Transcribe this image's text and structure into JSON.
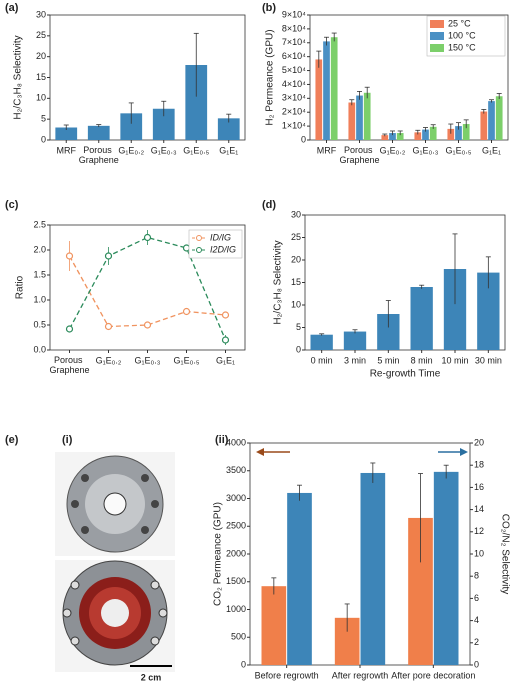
{
  "chart_data": [
    {
      "type": "bar",
      "panel": "(a)",
      "ylabel": "H₂/C₃H₈ Selectivity",
      "categories": [
        "MRF",
        "Porous Graphene",
        "G₁E₀.₂",
        "G₁E₀.₃",
        "G₁E₀.₅",
        "G₁E₁"
      ],
      "values": [
        3,
        3.4,
        6.4,
        7.5,
        18,
        5.2
      ],
      "errors": [
        0.6,
        0.3,
        2.5,
        1.8,
        7.6,
        1
      ],
      "color": "#3d85b8",
      "ylim": [
        0,
        30
      ],
      "yticks": [
        0,
        5,
        10,
        15,
        20,
        25,
        30
      ]
    },
    {
      "type": "bar",
      "panel": "(b)",
      "ylabel": "H₂ Permeance (GPU)",
      "categories": [
        "MRF",
        "Porous Graphene",
        "G₁E₀.₂",
        "G₁E₀.₃",
        "G₁E₀.₅",
        "G₁E₁"
      ],
      "series": [
        {
          "name": "25 °C",
          "color": "#f07f5a",
          "values": [
            58000,
            27000,
            3500,
            5500,
            8000,
            20500
          ],
          "errors": [
            6000,
            2000,
            800,
            1500,
            3500,
            1500
          ]
        },
        {
          "name": "100 °C",
          "color": "#4a90c4",
          "values": [
            71000,
            32000,
            5000,
            7500,
            10000,
            28000
          ],
          "errors": [
            3000,
            3000,
            1500,
            1500,
            2500,
            1000
          ]
        },
        {
          "name": "150 °C",
          "color": "#7ccf6a",
          "values": [
            74000,
            34000,
            5000,
            9500,
            11500,
            31500
          ],
          "errors": [
            3000,
            4000,
            1500,
            1500,
            3000,
            2000
          ]
        }
      ],
      "ylim": [
        0,
        90000
      ],
      "yticks": [
        0,
        {
          "value": 10000,
          "label": "1×10⁴"
        },
        {
          "value": 20000,
          "label": "2×10⁴"
        },
        {
          "value": 30000,
          "label": "3×10⁴"
        },
        {
          "value": 40000,
          "label": "4×10⁴"
        },
        {
          "value": 50000,
          "label": "5×10⁴"
        },
        {
          "value": 60000,
          "label": "6×10⁴"
        },
        {
          "value": 70000,
          "label": "7×10⁴"
        },
        {
          "value": 80000,
          "label": "8×10⁴"
        },
        {
          "value": 90000,
          "label": "9×10⁴"
        }
      ]
    },
    {
      "type": "line",
      "panel": "(c)",
      "ylabel": "Ratio",
      "categories": [
        "Porous Graphene",
        "G₁E₀.₂",
        "G₁E₀.₃",
        "G₁E₀.₅",
        "G₁E₁"
      ],
      "series": [
        {
          "name": "ID/IG",
          "color": "#f0935f",
          "values": [
            1.88,
            0.47,
            0.5,
            0.77,
            0.7
          ],
          "errors": [
            0.3,
            0.03,
            0.03,
            0.04,
            0.03
          ]
        },
        {
          "name": "I2D/IG",
          "color": "#2a8a5a",
          "values": [
            0.42,
            1.88,
            2.25,
            2.04,
            0.2
          ],
          "errors": [
            0.05,
            0.18,
            0.15,
            0.05,
            0.1
          ]
        }
      ],
      "ylim": [
        0,
        2.5
      ],
      "yticks": [
        {
          "value": 0,
          "label": "0.0"
        },
        0.5,
        {
          "value": 1,
          "label": "1.0"
        },
        1.5,
        {
          "value": 2,
          "label": "2.0"
        },
        2.5
      ]
    },
    {
      "type": "bar",
      "panel": "(d)",
      "ylabel": "H₂/C₃H₈ Selectivity",
      "xlabel": "Re-growth Time",
      "categories": [
        "0 min",
        "3 min",
        "5 min",
        "8 min",
        "10 min",
        "30 min"
      ],
      "values": [
        3.4,
        4.1,
        8,
        14,
        18,
        17.2
      ],
      "errors": [
        0.2,
        0.4,
        3,
        0.4,
        7.8,
        3.5
      ],
      "color": "#3d85b8",
      "ylim": [
        0,
        30
      ],
      "yticks": [
        0,
        5,
        10,
        15,
        20,
        25,
        30
      ]
    },
    {
      "type": "bar",
      "panel": "(ii)",
      "ylabel": "CO₂ Permeance (GPU)",
      "y2label": "CO₂/N₂ Selectivity",
      "categories": [
        "Before regrowth",
        "After regrowth",
        "After pore decoration"
      ],
      "series": [
        {
          "color": "#f07f4a",
          "values": [
            1420,
            850,
            2650
          ],
          "errors": [
            150,
            250,
            800
          ]
        },
        {
          "color": "#3d85b8",
          "axis": "y2",
          "values": [
            15.5,
            17.3,
            17.4
          ],
          "errors": [
            0.7,
            0.9,
            0.6
          ]
        }
      ],
      "ylim": [
        0,
        4000
      ],
      "yticks": [
        0,
        500,
        1000,
        1500,
        2000,
        2500,
        3000,
        3500,
        4000
      ],
      "y2lim": [
        0,
        20
      ],
      "y2ticks": [
        0,
        2,
        4,
        6,
        8,
        10,
        12,
        14,
        16,
        18,
        20
      ]
    }
  ],
  "photo": {
    "group": "(e)",
    "label": "(i)",
    "scale_bar": "2 cm"
  }
}
